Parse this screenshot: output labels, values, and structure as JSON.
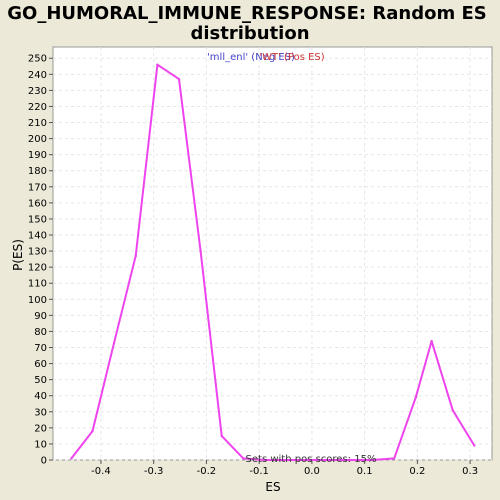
{
  "chart_data": {
    "type": "line",
    "title": "GO_HUMORAL_IMMUNE_RESPONSE: Random ES distribution",
    "title_lines": [
      "GO_HUMORAL_IMMUNE_RESPONSE: Random ES",
      "distribution"
    ],
    "xlabel": "ES",
    "ylabel": "P(ES)",
    "xlim": [
      -0.4909,
      0.3415
    ],
    "ylim": [
      0,
      257
    ],
    "x_ticks": [
      -0.4,
      -0.3,
      -0.2,
      -0.1,
      0.0,
      0.1,
      0.2,
      0.3
    ],
    "x_tick_labels": [
      "-0.4",
      "-0.3",
      "-0.2",
      "-0.1",
      "0.0",
      "0.1",
      "0.2",
      "0.3"
    ],
    "y_ticks": [
      0,
      10,
      20,
      30,
      40,
      50,
      60,
      70,
      80,
      90,
      100,
      110,
      120,
      130,
      140,
      150,
      160,
      170,
      180,
      190,
      200,
      210,
      220,
      230,
      240,
      250
    ],
    "grid": true,
    "legend": [
      {
        "label": "'mll_enl' (Neg ES)",
        "color": "#4444cc"
      },
      {
        "label": "'WT' (Pos ES)",
        "color": "#cc3333"
      }
    ],
    "annotation": "Sets with pos scores: 15%",
    "series": [
      {
        "color": "#ee44ee",
        "x": [
          -0.456,
          -0.416,
          -0.375,
          -0.334,
          -0.293,
          -0.252,
          -0.211,
          -0.171,
          -0.13,
          -0.089,
          -0.048,
          -0.007,
          0.033,
          0.074,
          0.115,
          0.156,
          0.197,
          0.227,
          0.267,
          0.308
        ],
        "y": [
          1,
          18,
          73,
          127,
          246,
          237,
          130,
          15,
          1,
          0,
          0,
          0,
          0,
          0,
          0,
          1,
          39,
          74,
          31,
          9
        ]
      }
    ]
  }
}
